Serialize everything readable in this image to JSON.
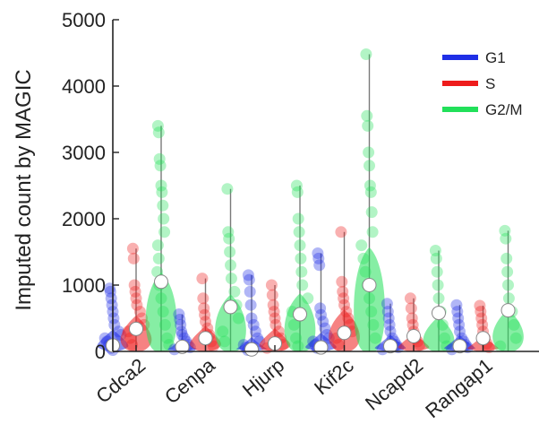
{
  "chart_data": {
    "type": "violin",
    "title": "",
    "xlabel": "",
    "ylabel": "Imputed count by MAGIC",
    "ylim": [
      0,
      5000
    ],
    "yticks": [
      0,
      1000,
      2000,
      3000,
      4000,
      5000
    ],
    "categories": [
      "Cdca2",
      "Cenpa",
      "Hjurp",
      "Kif2c",
      "Ncapd2",
      "Rangap1"
    ],
    "legend_position": "top-right",
    "series": [
      {
        "name": "G1",
        "color": "#1f2fe6",
        "medians": [
          90,
          70,
          30,
          60,
          80,
          80
        ],
        "max": [
          950,
          560,
          1150,
          1480,
          720,
          700
        ],
        "points": [
          [
            950,
            900,
            800,
            700,
            600,
            500,
            400,
            300,
            250,
            200,
            150,
            100,
            50,
            20
          ],
          [
            560,
            480,
            400,
            300,
            250,
            200,
            150,
            100,
            60,
            30
          ],
          [
            1150,
            1080,
            900,
            700,
            500,
            400,
            300,
            200,
            150,
            100,
            60,
            20
          ],
          [
            1480,
            1400,
            1300,
            650,
            550,
            450,
            350,
            250,
            200,
            150,
            100,
            50
          ],
          [
            720,
            600,
            500,
            400,
            300,
            200,
            150,
            100,
            60,
            30
          ],
          [
            700,
            600,
            500,
            400,
            300,
            200,
            150,
            100,
            60,
            30
          ]
        ]
      },
      {
        "name": "S",
        "color": "#ee1c1c",
        "medians": [
          340,
          200,
          120,
          280,
          230,
          200
        ],
        "max": [
          1550,
          1100,
          1000,
          1800,
          800,
          690
        ],
        "points": [
          [
            1550,
            1400,
            1000,
            900,
            800,
            700,
            600,
            500,
            400,
            300,
            200,
            100
          ],
          [
            1100,
            800,
            650,
            550,
            450,
            350,
            250,
            150,
            80
          ],
          [
            1000,
            850,
            700,
            600,
            500,
            400,
            300,
            200,
            100,
            50
          ],
          [
            1800,
            1050,
            900,
            800,
            700,
            600,
            500,
            400,
            300,
            200,
            100
          ],
          [
            800,
            650,
            500,
            400,
            300,
            200,
            150,
            100
          ],
          [
            690,
            600,
            500,
            400,
            300,
            200,
            120,
            60
          ]
        ]
      },
      {
        "name": "G2/M",
        "color": "#22e05a",
        "medians": [
          1050,
          670,
          560,
          1000,
          580,
          620
        ],
        "max": [
          3400,
          2450,
          2500,
          4480,
          1520,
          1820
        ],
        "points": [
          [
            3400,
            3300,
            2900,
            2800,
            2500,
            2400,
            2200,
            2000,
            1800,
            1600,
            1400,
            1200,
            1000,
            800,
            600,
            400,
            200,
            100
          ],
          [
            2450,
            1800,
            1700,
            1500,
            1300,
            1100,
            900,
            700,
            500,
            300,
            150
          ],
          [
            2500,
            2400,
            2000,
            1800,
            1600,
            1400,
            1200,
            1000,
            800,
            600,
            400,
            200,
            80
          ],
          [
            4480,
            3550,
            3400,
            3000,
            2800,
            2500,
            2400,
            2100,
            1800,
            1600,
            1400,
            1200,
            1000,
            800,
            600,
            400,
            200
          ],
          [
            1520,
            1400,
            1200,
            1000,
            800,
            600,
            400,
            200,
            80
          ],
          [
            1820,
            1700,
            1400,
            1200,
            1000,
            800,
            600,
            400,
            200,
            80
          ]
        ]
      }
    ]
  }
}
